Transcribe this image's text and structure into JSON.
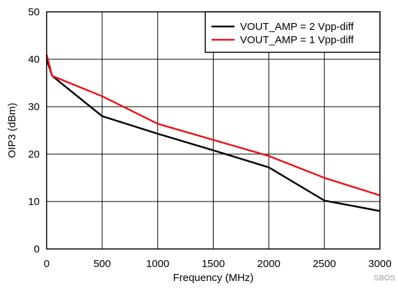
{
  "chart_data": {
    "type": "line",
    "title": "",
    "xlabel": "Frequency (MHz)",
    "ylabel": "OIP3 (dBm)",
    "xlim": [
      0,
      3000
    ],
    "ylim": [
      0,
      50
    ],
    "xticks": [
      0,
      500,
      1000,
      1500,
      2000,
      2500,
      3000
    ],
    "yticks": [
      0,
      10,
      20,
      30,
      40,
      50
    ],
    "xtick_labels": [
      "0",
      "500",
      "1000",
      "1500",
      "2000",
      "2500",
      "3000"
    ],
    "ytick_labels": [
      "0",
      "10",
      "20",
      "30",
      "40",
      "50"
    ],
    "grid": true,
    "legend_position": "top-right",
    "series": [
      {
        "name": "VOUT_AMP = 2 Vpp-diff",
        "color": "#000000",
        "x": [
          0,
          50,
          500,
          1000,
          1500,
          2000,
          2500,
          3000
        ],
        "y": [
          40,
          36.5,
          28,
          24.3,
          20.8,
          17.2,
          10.2,
          8.0
        ]
      },
      {
        "name": "VOUT_AMP = 1 Vpp-diff",
        "color": "#e8141b",
        "x": [
          0,
          50,
          500,
          1000,
          1500,
          2000,
          2500,
          3000
        ],
        "y": [
          41,
          36.5,
          32.2,
          26.4,
          23.0,
          19.6,
          15.0,
          11.3
        ]
      }
    ]
  },
  "watermark": "SBOS"
}
